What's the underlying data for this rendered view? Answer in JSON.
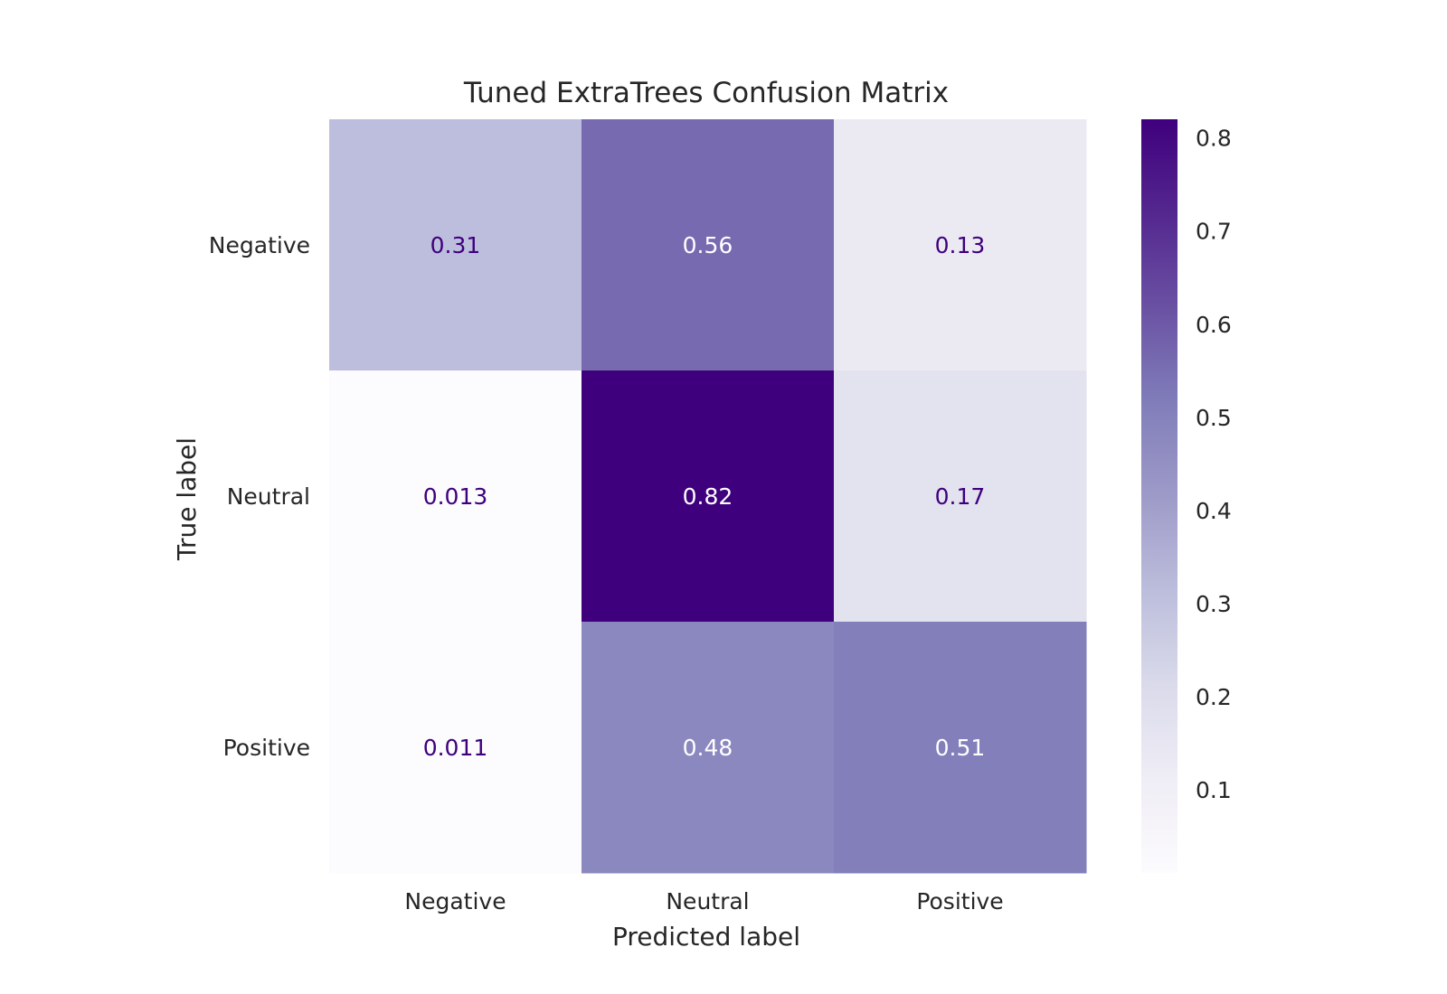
{
  "chart_data": {
    "type": "heatmap",
    "title": "Tuned ExtraTrees Confusion Matrix",
    "xlabel": "Predicted label",
    "ylabel": "True label",
    "x_categories": [
      "Negative",
      "Neutral",
      "Positive"
    ],
    "y_categories": [
      "Negative",
      "Neutral",
      "Positive"
    ],
    "values": [
      [
        0.31,
        0.56,
        0.13
      ],
      [
        0.013,
        0.82,
        0.17
      ],
      [
        0.011,
        0.48,
        0.51
      ]
    ],
    "value_labels": [
      [
        "0.31",
        "0.56",
        "0.13"
      ],
      [
        "0.013",
        "0.82",
        "0.17"
      ],
      [
        "0.011",
        "0.48",
        "0.51"
      ]
    ],
    "colormap": "Purples",
    "colorbar": {
      "min": 0.011,
      "max": 0.82,
      "ticks": [
        "0.1",
        "0.2",
        "0.3",
        "0.4",
        "0.5",
        "0.6",
        "0.7",
        "0.8"
      ]
    },
    "grid": false
  },
  "colors": {
    "text": "#262626",
    "dark_cell_text": "#ffffff",
    "light_cell_text": "#3f007d"
  }
}
